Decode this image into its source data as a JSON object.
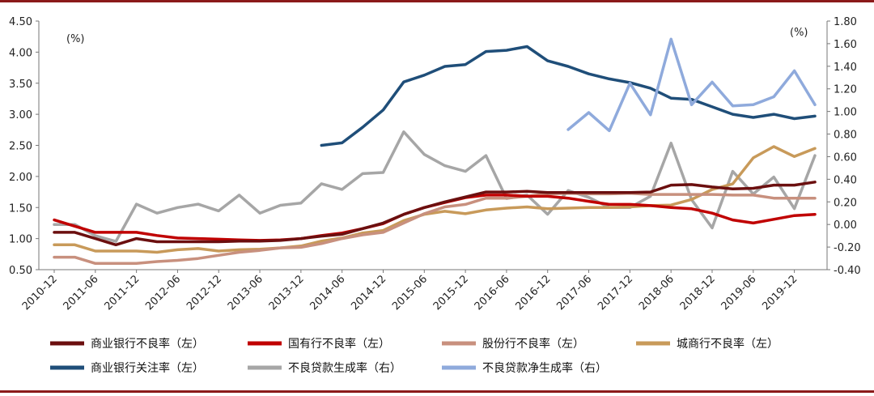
{
  "chart_data": {
    "type": "line",
    "x": [
      "2010-12",
      "2011-03",
      "2011-06",
      "2011-09",
      "2011-12",
      "2012-03",
      "2012-06",
      "2012-09",
      "2012-12",
      "2013-03",
      "2013-06",
      "2013-09",
      "2013-12",
      "2014-03",
      "2014-06",
      "2014-09",
      "2014-12",
      "2015-03",
      "2015-06",
      "2015-09",
      "2015-12",
      "2016-03",
      "2016-06",
      "2016-09",
      "2016-12",
      "2017-03",
      "2017-06",
      "2017-09",
      "2017-12",
      "2018-03",
      "2018-06",
      "2018-09",
      "2018-12",
      "2019-03",
      "2019-06",
      "2019-09",
      "2019-12",
      "2020-03"
    ],
    "x_tick_labels": [
      "2010-12",
      "2011-06",
      "2011-12",
      "2012-06",
      "2012-12",
      "2013-06",
      "2013-12",
      "2014-06",
      "2014-12",
      "2015-06",
      "2015-12",
      "2016-06",
      "2016-12",
      "2017-06",
      "2017-12",
      "2018-06",
      "2018-12",
      "2019-06",
      "2019-12"
    ],
    "y_left": {
      "label": "(%)",
      "min": 0.5,
      "max": 4.5,
      "ticks": [
        "0.50",
        "1.00",
        "1.50",
        "2.00",
        "2.50",
        "3.00",
        "3.50",
        "4.00",
        "4.50"
      ]
    },
    "y_right": {
      "label": "(%)",
      "min": -0.4,
      "max": 1.8,
      "ticks": [
        "-0.40",
        "-0.20",
        "0.00",
        "0.20",
        "0.40",
        "0.60",
        "0.80",
        "1.00",
        "1.20",
        "1.40",
        "1.60",
        "1.80"
      ]
    },
    "legend_placement": "bottom",
    "series": [
      {
        "name": "商业银行不良率（左）",
        "axis": "left",
        "color": "#6b0f0f",
        "values": [
          1.1,
          1.1,
          1.0,
          0.9,
          1.0,
          0.95,
          0.95,
          0.95,
          0.95,
          0.96,
          0.96,
          0.97,
          1.0,
          1.04,
          1.07,
          1.16,
          1.25,
          1.39,
          1.5,
          1.59,
          1.67,
          1.75,
          1.75,
          1.76,
          1.74,
          1.74,
          1.74,
          1.74,
          1.74,
          1.75,
          1.86,
          1.87,
          1.83,
          1.8,
          1.81,
          1.86,
          1.86,
          1.91
        ]
      },
      {
        "name": "国有行不良率（左）",
        "axis": "left",
        "color": "#c00000",
        "values": [
          1.3,
          1.2,
          1.1,
          1.1,
          1.1,
          1.05,
          1.01,
          1.0,
          0.99,
          0.98,
          0.97,
          0.98,
          1.0,
          1.05,
          1.09,
          1.16,
          1.24,
          1.39,
          1.5,
          1.58,
          1.66,
          1.7,
          1.7,
          1.68,
          1.68,
          1.65,
          1.6,
          1.55,
          1.55,
          1.53,
          1.5,
          1.48,
          1.41,
          1.3,
          1.25,
          1.31,
          1.37,
          1.39
        ]
      },
      {
        "name": "股份行不良率（左）",
        "axis": "left",
        "color": "#c8907e",
        "values": [
          0.7,
          0.7,
          0.6,
          0.6,
          0.6,
          0.63,
          0.65,
          0.68,
          0.73,
          0.78,
          0.81,
          0.85,
          0.86,
          0.92,
          1.0,
          1.06,
          1.1,
          1.25,
          1.4,
          1.51,
          1.55,
          1.65,
          1.65,
          1.68,
          1.72,
          1.73,
          1.72,
          1.72,
          1.73,
          1.71,
          1.71,
          1.71,
          1.71,
          1.7,
          1.7,
          1.65,
          1.65,
          1.65
        ]
      },
      {
        "name": "城商行不良率（左）",
        "axis": "left",
        "color": "#c89a5a",
        "values": [
          0.9,
          0.9,
          0.8,
          0.8,
          0.8,
          0.78,
          0.82,
          0.84,
          0.8,
          0.82,
          0.83,
          0.85,
          0.88,
          0.96,
          1.01,
          1.09,
          1.13,
          1.29,
          1.39,
          1.44,
          1.4,
          1.46,
          1.49,
          1.51,
          1.48,
          1.49,
          1.5,
          1.5,
          1.51,
          1.53,
          1.54,
          1.63,
          1.79,
          1.88,
          2.3,
          2.48,
          2.32,
          2.45
        ]
      },
      {
        "name": "商业银行关注率（左）",
        "axis": "left",
        "color": "#1f4e79",
        "values": [
          null,
          null,
          null,
          null,
          null,
          null,
          null,
          null,
          null,
          null,
          null,
          null,
          null,
          2.5,
          2.54,
          2.79,
          3.07,
          3.52,
          3.63,
          3.77,
          3.8,
          4.01,
          4.03,
          4.09,
          3.86,
          3.77,
          3.65,
          3.57,
          3.51,
          3.42,
          3.26,
          3.24,
          3.12,
          3.0,
          2.95,
          3.0,
          2.93,
          2.97
        ]
      },
      {
        "name": "不良贷款生成率（右）",
        "axis": "right",
        "color": "#a6a6a6",
        "values": [
          0.0,
          0.0,
          -0.1,
          -0.15,
          0.18,
          0.1,
          0.15,
          0.18,
          0.12,
          0.26,
          0.1,
          0.17,
          0.19,
          0.36,
          0.31,
          0.45,
          0.46,
          0.82,
          0.62,
          0.52,
          0.47,
          0.61,
          0.23,
          0.26,
          0.09,
          0.3,
          0.24,
          0.15,
          0.15,
          0.25,
          0.72,
          0.22,
          -0.03,
          0.47,
          0.27,
          0.42,
          0.14,
          0.61
        ]
      },
      {
        "name": "不良贷款净生成率（右）",
        "axis": "right",
        "color": "#8faadc",
        "values": [
          null,
          null,
          null,
          null,
          null,
          null,
          null,
          null,
          null,
          null,
          null,
          null,
          null,
          null,
          null,
          null,
          null,
          null,
          null,
          null,
          null,
          null,
          null,
          null,
          null,
          0.84,
          0.99,
          0.83,
          1.25,
          0.97,
          1.64,
          1.06,
          1.26,
          1.05,
          1.06,
          1.13,
          1.36,
          1.06
        ]
      }
    ]
  }
}
